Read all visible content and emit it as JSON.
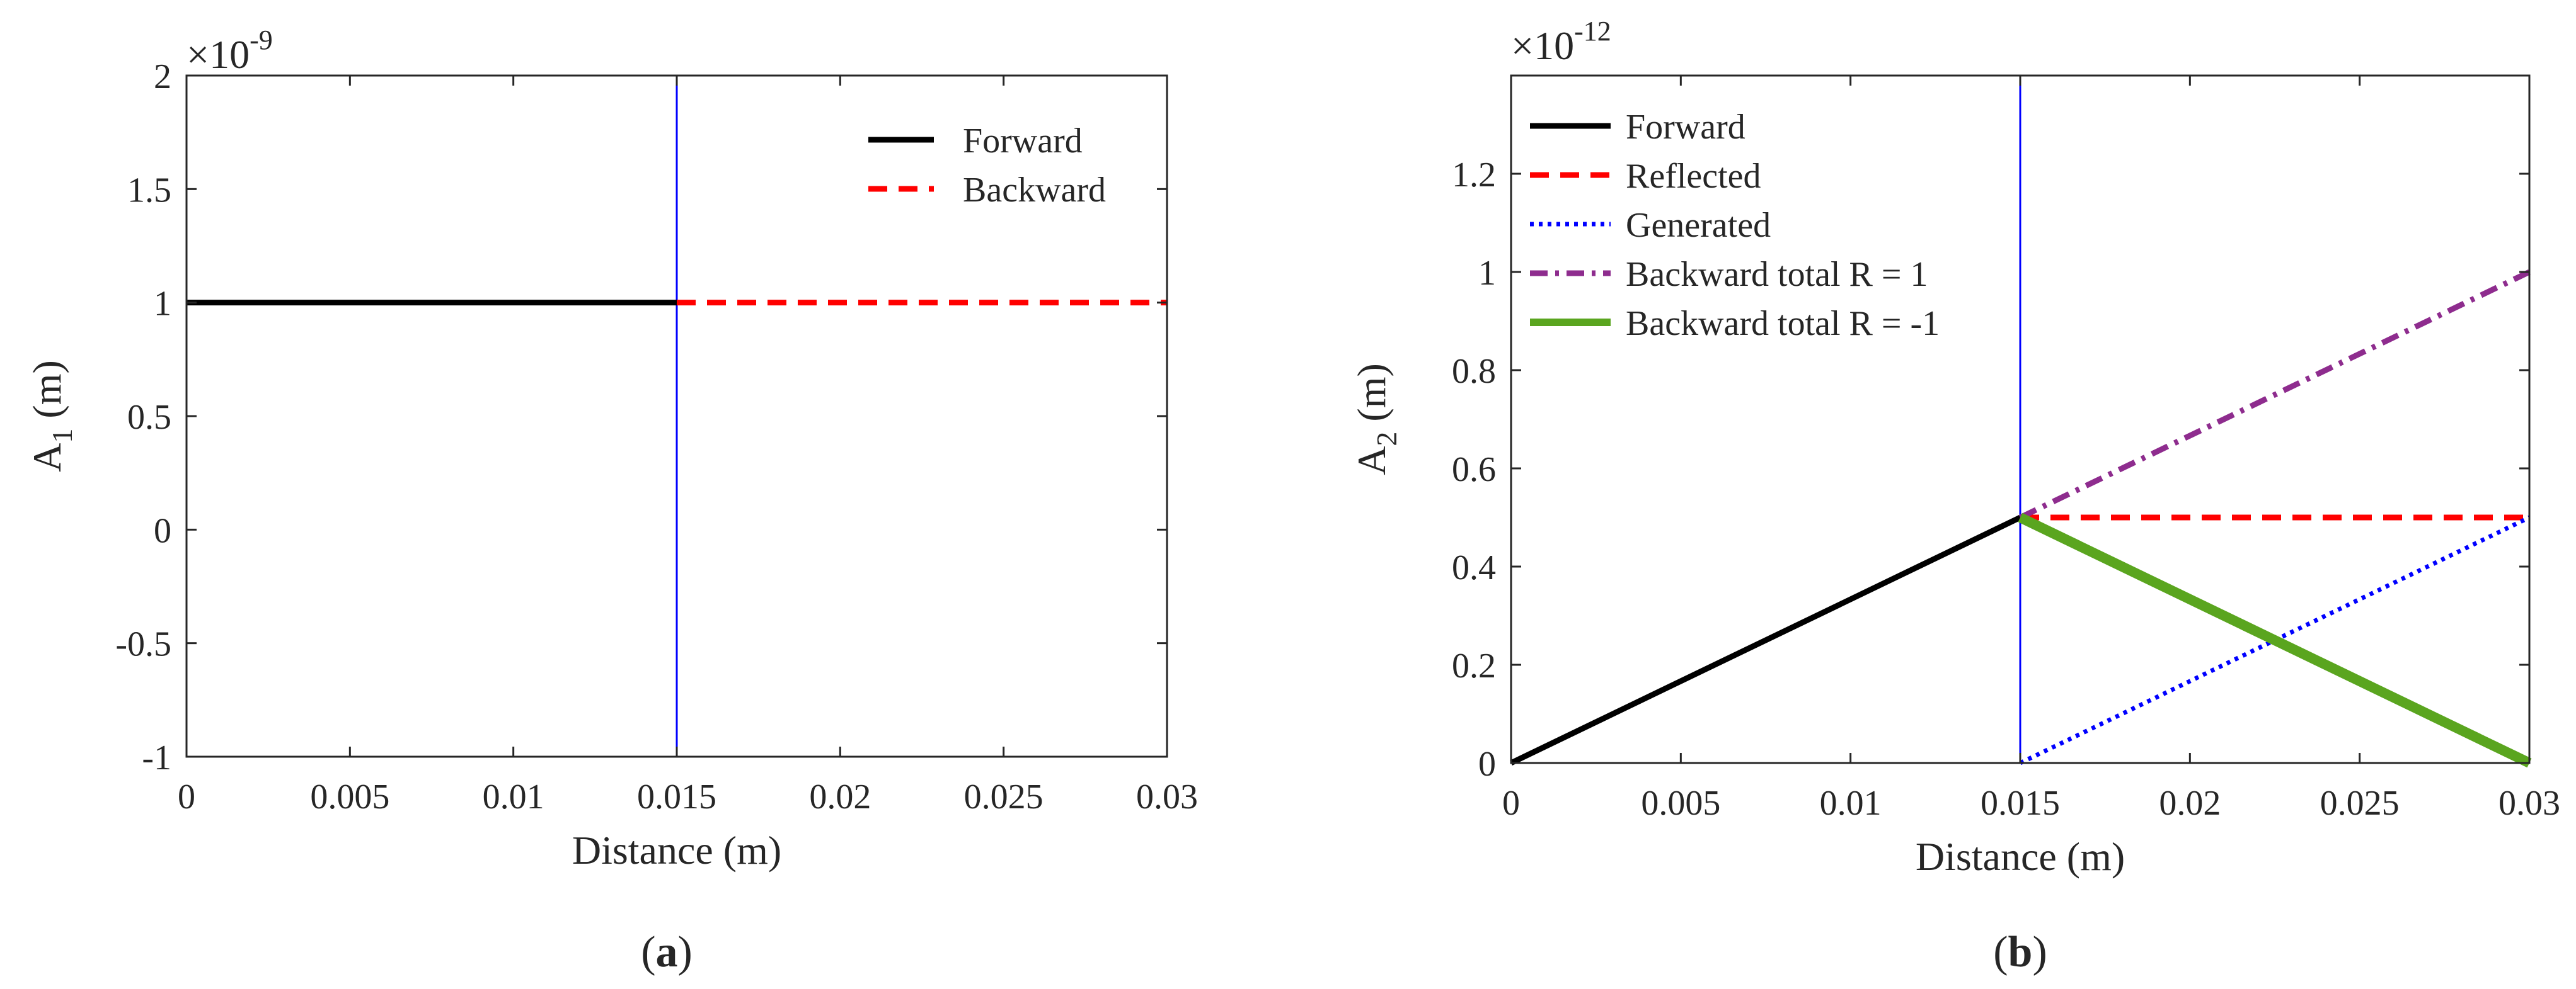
{
  "chart_data": [
    {
      "type": "line",
      "panel_label": "a",
      "exponent": {
        "base": "×10",
        "power": "-9"
      },
      "xlabel": "Distance (m)",
      "ylabel": {
        "main": "A",
        "subscript": "1",
        "unit": " (m)"
      },
      "xlim": [
        0,
        0.03
      ],
      "ylim": [
        -1,
        2
      ],
      "x_ticks": [
        0,
        0.005,
        0.01,
        0.015,
        0.02,
        0.025,
        0.03
      ],
      "x_tick_labels": [
        "0",
        "0.005",
        "0.01",
        "0.015",
        "0.02",
        "0.025",
        "0.03"
      ],
      "y_ticks": [
        -1,
        -0.5,
        0,
        0.5,
        1,
        1.5,
        2
      ],
      "y_tick_labels": [
        "-1",
        "-0.5",
        "0",
        "0.5",
        "1",
        "1.5",
        "2"
      ],
      "vline": {
        "x": 0.015,
        "color": "#0000ff"
      },
      "legend": "top-right",
      "series": [
        {
          "name": "Forward",
          "color": "#000000",
          "style": "solid",
          "width": 9,
          "x": [
            0,
            0.015
          ],
          "y": [
            1,
            1
          ]
        },
        {
          "name": "Backward",
          "color": "#ff0000",
          "style": "dashed",
          "width": 9,
          "x": [
            0.015,
            0.03
          ],
          "y": [
            1,
            1
          ]
        }
      ]
    },
    {
      "type": "line",
      "panel_label": "b",
      "exponent": {
        "base": "×10",
        "power": "-12"
      },
      "xlabel": "Distance (m)",
      "ylabel": {
        "main": "A",
        "subscript": "2",
        "unit": " (m)"
      },
      "xlim": [
        0,
        0.03
      ],
      "ylim": [
        0,
        1.4
      ],
      "x_ticks": [
        0,
        0.005,
        0.01,
        0.015,
        0.02,
        0.025,
        0.03
      ],
      "x_tick_labels": [
        "0",
        "0.005",
        "0.01",
        "0.015",
        "0.02",
        "0.025",
        "0.03"
      ],
      "y_ticks": [
        0,
        0.2,
        0.4,
        0.6,
        0.8,
        1,
        1.2
      ],
      "y_tick_labels": [
        "0",
        "0.2",
        "0.4",
        "0.6",
        "0.8",
        "1",
        "1.2"
      ],
      "vline": {
        "x": 0.015,
        "color": "#0000ff"
      },
      "legend": "top-left",
      "series": [
        {
          "name": "Forward",
          "color": "#000000",
          "style": "solid",
          "width": 9,
          "x": [
            0,
            0.015
          ],
          "y": [
            0,
            0.5
          ]
        },
        {
          "name": "Reflected",
          "color": "#ff0000",
          "style": "dashed",
          "width": 9,
          "x": [
            0.015,
            0.03
          ],
          "y": [
            0.5,
            0.5
          ]
        },
        {
          "name": "Generated",
          "color": "#0000ff",
          "style": "dotted",
          "width": 7,
          "x": [
            0.015,
            0.03
          ],
          "y": [
            0,
            0.5
          ]
        },
        {
          "name": "Backward total R = 1",
          "color": "#8e2c8e",
          "style": "dashdot",
          "width": 9,
          "x": [
            0.015,
            0.03
          ],
          "y": [
            0.5,
            1.0
          ]
        },
        {
          "name": "Backward total R = -1",
          "color": "#5aa51f",
          "style": "solid",
          "width": 16,
          "x": [
            0.015,
            0.03
          ],
          "y": [
            0.5,
            0
          ]
        }
      ]
    }
  ]
}
